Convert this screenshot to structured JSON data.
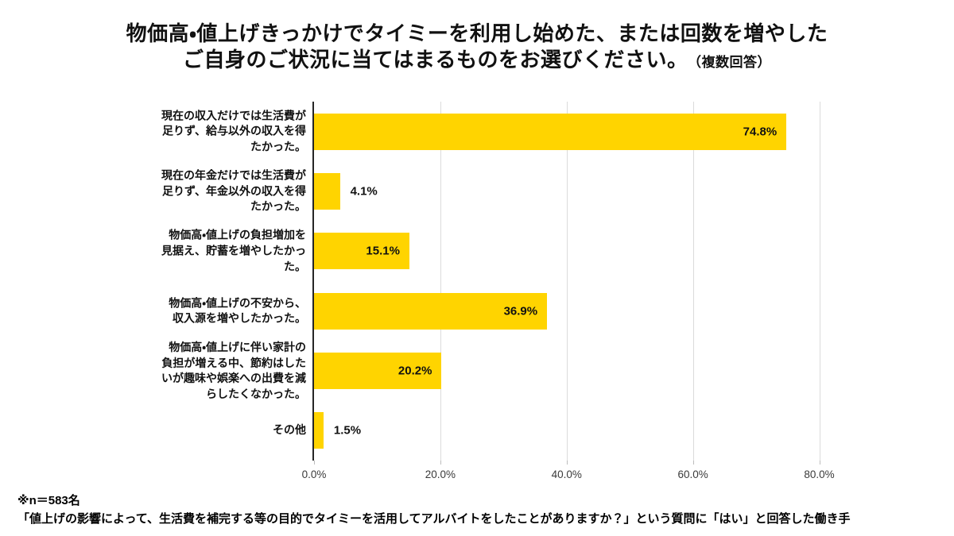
{
  "page": {
    "background": "#ffffff"
  },
  "title": {
    "line1": "物価高・値上げきっかけでタイミーを利用し始めた、または回数を増やした",
    "line2": "ご自身のご状況に当てはまるものをお選びください。",
    "line2_suffix": "（複数回答）"
  },
  "chart_data": {
    "type": "bar",
    "orientation": "horizontal",
    "unit": "%",
    "title": "物価高・値上げきっかけでタイミーを利用し始めた、または回数を増やしたご自身のご状況に当てはまるものをお選びください。（複数回答）",
    "categories": [
      "現在の収入だけでは生活費が足りず、給与以外の収入を得たかった。",
      "現在の年金だけでは生活費が足りず、年金以外の収入を得たかった。",
      "物価高・値上げの負担増加を見据え、貯蓄を増やしたかった。",
      "物価高・値上げの不安から、収入源を増やしたかった。",
      "物価高・値上げに伴い家計の負担が増える中、節約はしたいが趣味や娯楽への出費を減らしたくなかった。",
      "その他"
    ],
    "values": [
      74.8,
      4.1,
      15.1,
      36.9,
      20.2,
      1.5
    ],
    "value_labels": [
      "74.8%",
      "4.1%",
      "15.1%",
      "36.9%",
      "20.2%",
      "1.5%"
    ],
    "x_axis": {
      "ticks": [
        "0.0%",
        "20.0%",
        "40.0%",
        "60.0%",
        "80.0%"
      ],
      "tick_values": [
        0,
        20,
        40,
        60,
        80
      ],
      "max": 89
    },
    "grid": true,
    "legend": false,
    "colors": {
      "bar": "#FFD400",
      "grid": "#dbdbdb",
      "tick": "#bdbdbd",
      "axis": "#262626",
      "value_text": "#111111",
      "tick_label": "#3a3a3a"
    }
  },
  "footer": {
    "line1": "※n＝583名",
    "line2": "「値上げの影響によって、生活費を補完する等の目的でタイミーを活用してアルバイトをしたことがありますか？」という質問に「はい」と回答した働き手"
  }
}
